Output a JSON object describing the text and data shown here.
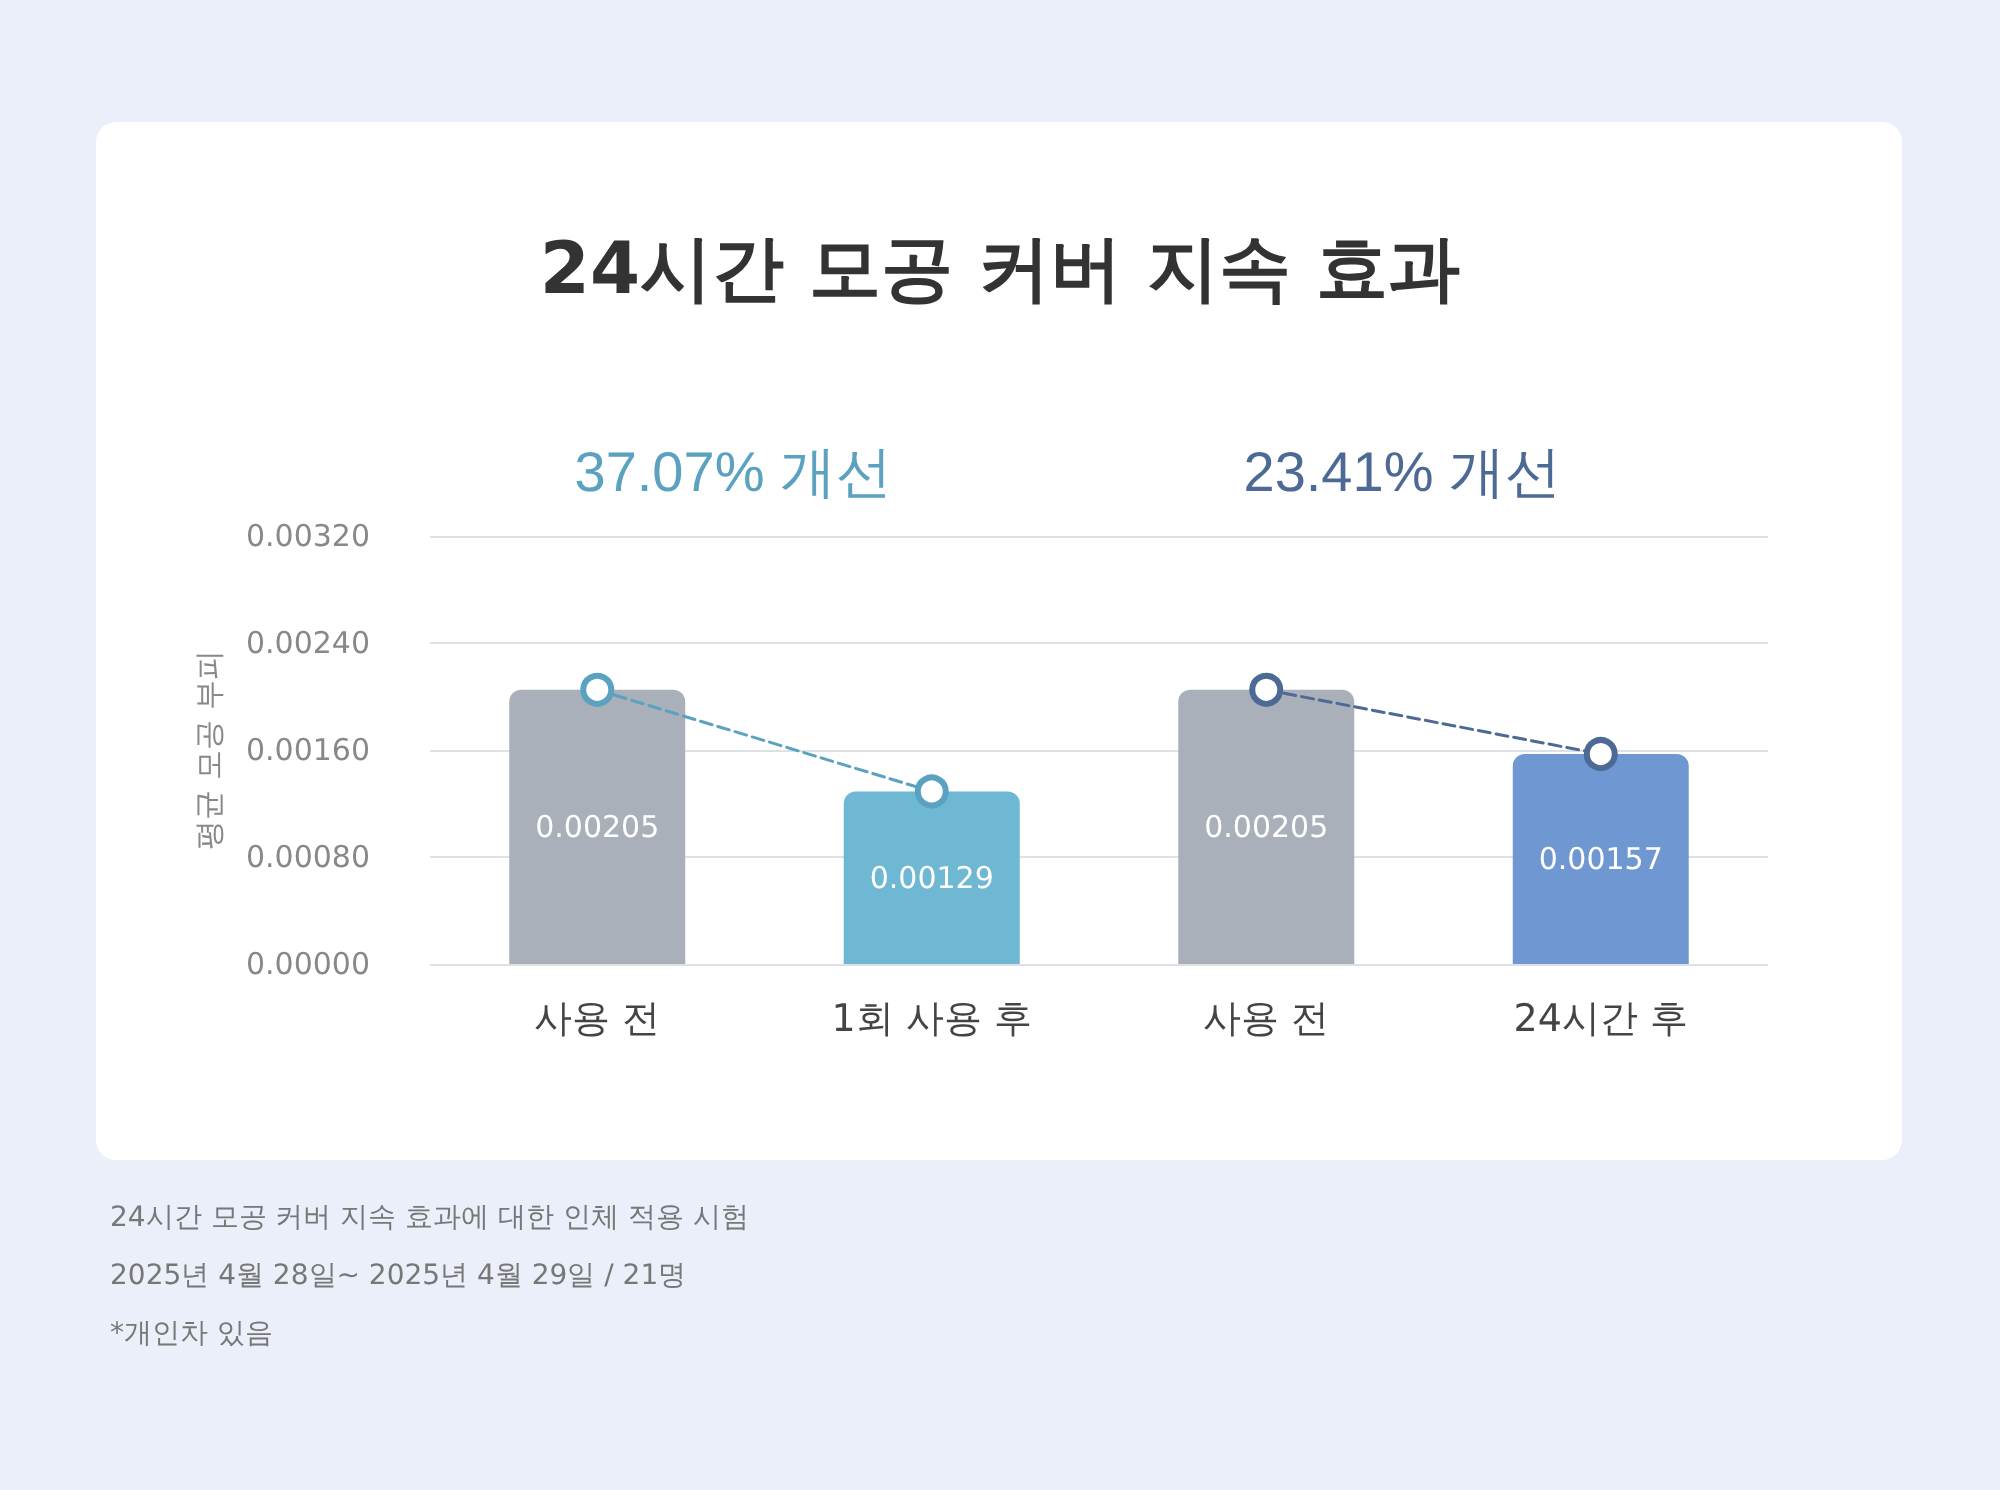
{
  "chart_data": {
    "type": "bar",
    "title": "24시간 모공 커버 지속 효과",
    "ylabel": "평균 모공 부피",
    "categories": [
      "사용 전",
      "1회 사용 후",
      "사용 전",
      "24시간 후"
    ],
    "series": [
      {
        "values": [
          0.00205,
          0.00129,
          0.00205,
          0.00157
        ],
        "colors": [
          "#aab0b9",
          "#6fb8d4",
          "#aab0b9",
          "#6f98d2"
        ],
        "value_labels": [
          "0.00205",
          "0.00129",
          "0.00205",
          "0.00157"
        ]
      },
      {
        "type": "line",
        "color": "#5aa2c0",
        "values": [
          0.00205,
          0.00129,
          null,
          null
        ],
        "line_style": "dashed",
        "marker": "circle"
      },
      {
        "type": "line",
        "color": "#4d6a96",
        "values": [
          null,
          null,
          0.00205,
          0.00157
        ],
        "line_style": "dashed",
        "marker": "circle"
      }
    ],
    "ylim": [
      0,
      0.0032
    ],
    "yticks": [
      {
        "value": 0,
        "label": "0.00000"
      },
      {
        "value": 0.0008,
        "label": "0.00080"
      },
      {
        "value": 0.0016,
        "label": "0.00160"
      },
      {
        "value": 0.0024,
        "label": "0.00240"
      },
      {
        "value": 0.0032,
        "label": "0.00320"
      }
    ],
    "grid": "y",
    "annotations": [
      "37.07% 개선",
      "23.41% 개선",
      "24시간 모공 커버 지속 효과에 대한 인체 적용 시험",
      "2025년 4월 28일~ 2025년 4월 29일 / 21명",
      "*개인차 있음"
    ]
  }
}
